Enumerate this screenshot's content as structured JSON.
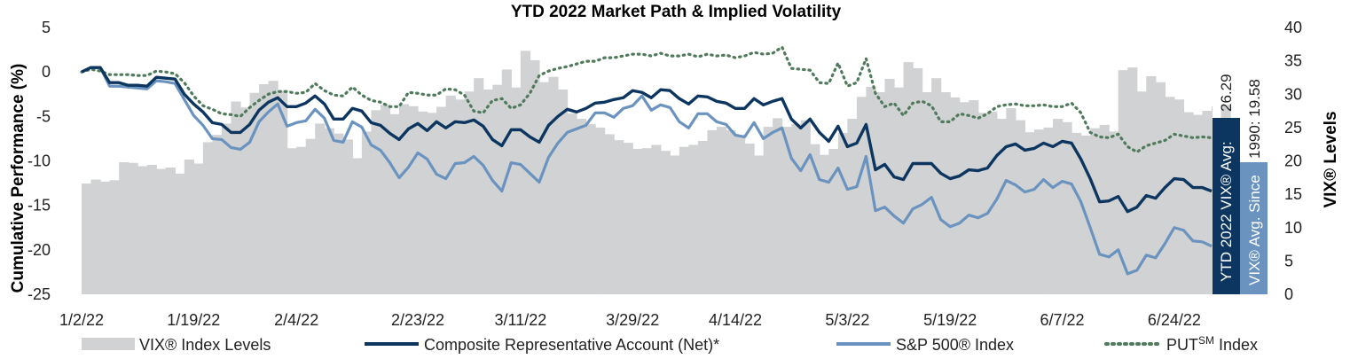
{
  "chart_data": {
    "type": "line",
    "title": "YTD 2022 Market Path & Implied Volatility",
    "ylabel_left": "Cumulative Performance (%)",
    "ylabel_right": "VIX® Levels",
    "y_left_ticks": [
      "5",
      "0",
      "-5",
      "-10",
      "-15",
      "-20",
      "-25"
    ],
    "y_right_ticks": [
      "40",
      "35",
      "30",
      "25",
      "20",
      "15",
      "10",
      "5",
      "0"
    ],
    "ylim_left": [
      -25,
      5
    ],
    "ylim_right": [
      0,
      40
    ],
    "x_tick_labels": [
      "1/2/22",
      "1/19/22",
      "2/4/22",
      "2/23/22",
      "3/11/22",
      "3/29/22",
      "4/14/22",
      "5/3/22",
      "5/19/22",
      "6/7/22",
      "6/24/22"
    ],
    "x_tick_index": [
      0,
      12,
      23,
      36,
      47,
      59,
      70,
      82,
      93,
      105,
      117
    ],
    "legend": {
      "vix": "VIX® Index Levels",
      "composite": "Composite Representative Account (Net)*",
      "sp500": "S&P 500® Index",
      "put_prefix": "PUT",
      "put_sup": "SM",
      "put_suffix": " Index"
    },
    "colors": {
      "vix": "#d0d2d3",
      "composite": "#0c3560",
      "sp500": "#6b93bf",
      "put": "#4f7a5b",
      "badge_ytd": "#0c3560",
      "badge_since": "#6b93bf"
    },
    "annotations": {
      "ytd_avg_label": "YTD 2022 VIX® Avg:",
      "ytd_avg_value": "26.29",
      "since_avg_label": "VIX® Avg. Since",
      "since_avg_value": "1990: 19.58"
    },
    "series": {
      "vix": [
        16.6,
        17.2,
        16.9,
        17.1,
        19.8,
        19.7,
        19.2,
        19.4,
        18.8,
        19.0,
        18.1,
        20.2,
        19.6,
        22.8,
        23.9,
        25.6,
        28.9,
        28.0,
        30.2,
        31.5,
        32.0,
        30.5,
        21.9,
        22.1,
        23.3,
        25.6,
        24.9,
        24.1,
        23.2,
        20.4,
        24.4,
        27.6,
        28.4,
        27.0,
        28.5,
        28.2,
        27.4,
        27.2,
        28.1,
        29.8,
        29.2,
        30.4,
        32.4,
        30.7,
        31.4,
        33.7,
        31.0,
        36.5,
        35.1,
        31.8,
        32.6,
        30.7,
        27.1,
        26.3,
        25.5,
        25.0,
        24.0,
        23.1,
        22.7,
        21.8,
        21.9,
        22.4,
        21.5,
        20.8,
        22.1,
        22.4,
        23.0,
        24.6,
        25.1,
        24.6,
        23.7,
        22.6,
        20.8,
        25.1,
        26.4,
        25.1,
        25.5,
        26.1,
        22.5,
        20.9,
        21.8,
        24.2,
        26.3,
        29.6,
        31.1,
        30.3,
        32.3,
        31.0,
        34.8,
        33.9,
        30.3,
        32.4,
        30.3,
        29.5,
        28.8,
        29.1,
        27.2,
        27.4,
        26.3,
        27.9,
        26.1,
        24.3,
        24.7,
        25.0,
        26.3,
        25.8,
        24.2,
        23.8,
        24.9,
        25.4,
        24.4,
        33.6,
        34.0,
        30.4,
        32.7,
        31.8,
        29.6,
        29.2,
        27.3,
        26.9,
        27.5,
        28.2,
        28.4
      ],
      "composite": [
        0,
        0.5,
        0.5,
        -1.2,
        -1.2,
        -1.5,
        -1.5,
        -1.6,
        -0.6,
        -0.7,
        -0.8,
        -2.5,
        -3.6,
        -4.5,
        -5.7,
        -5.9,
        -6.8,
        -6.8,
        -5.9,
        -4.3,
        -3.4,
        -2.9,
        -3.9,
        -3.9,
        -3.5,
        -2.7,
        -3.6,
        -5.3,
        -5.3,
        -4.1,
        -4.4,
        -5.7,
        -6.0,
        -6.9,
        -7.6,
        -6.4,
        -5.8,
        -6.6,
        -5.6,
        -6.3,
        -5.6,
        -5.7,
        -5.4,
        -6.1,
        -7.6,
        -8.3,
        -6.5,
        -6.5,
        -7.3,
        -7.9,
        -6.0,
        -5.0,
        -4.2,
        -4.5,
        -4.1,
        -3.5,
        -3.4,
        -3.1,
        -2.9,
        -2.1,
        -2.3,
        -2.9,
        -2.0,
        -2.1,
        -3.0,
        -3.6,
        -2.7,
        -2.8,
        -3.3,
        -3.5,
        -4.1,
        -4.1,
        -3.0,
        -3.7,
        -3.3,
        -3.0,
        -5.3,
        -6.3,
        -5.3,
        -6.8,
        -7.8,
        -6.1,
        -8.4,
        -8.0,
        -5.9,
        -11.0,
        -10.4,
        -11.8,
        -12.1,
        -10.3,
        -10.3,
        -10.3,
        -11.4,
        -12.0,
        -11.7,
        -11.0,
        -11.1,
        -10.8,
        -9.4,
        -8.4,
        -8.1,
        -8.8,
        -8.6,
        -8.0,
        -8.4,
        -7.8,
        -8.0,
        -9.8,
        -12.0,
        -14.6,
        -14.5,
        -14.0,
        -15.7,
        -15.2,
        -13.9,
        -14.2,
        -13.0,
        -12.0,
        -12.1,
        -13.0,
        -13.0,
        -13.4
      ],
      "sp500": [
        0,
        0.5,
        0.5,
        -1.6,
        -1.6,
        -1.7,
        -1.8,
        -1.9,
        -1.0,
        -1.1,
        -1.3,
        -3.1,
        -4.9,
        -6.0,
        -7.5,
        -7.6,
        -8.5,
        -8.7,
        -7.9,
        -5.6,
        -4.5,
        -3.6,
        -6.1,
        -5.7,
        -5.5,
        -4.2,
        -5.2,
        -7.7,
        -7.9,
        -5.6,
        -6.2,
        -8.2,
        -8.8,
        -10.2,
        -11.9,
        -10.7,
        -9.1,
        -9.8,
        -11.5,
        -12.0,
        -10.3,
        -10.2,
        -9.5,
        -10.5,
        -12.2,
        -13.4,
        -10.2,
        -10.4,
        -11.4,
        -12.4,
        -9.6,
        -8.0,
        -6.8,
        -6.4,
        -6.0,
        -4.6,
        -4.6,
        -5.1,
        -4.1,
        -3.8,
        -2.7,
        -4.3,
        -3.7,
        -4.0,
        -5.6,
        -6.3,
        -4.7,
        -4.7,
        -5.6,
        -5.9,
        -7.1,
        -7.3,
        -5.7,
        -7.5,
        -6.8,
        -6.3,
        -9.7,
        -11.1,
        -9.3,
        -12.1,
        -12.4,
        -10.8,
        -13.2,
        -12.9,
        -9.5,
        -15.6,
        -15.2,
        -16.2,
        -17.0,
        -15.4,
        -14.9,
        -14.1,
        -16.6,
        -17.4,
        -17.0,
        -16.1,
        -16.4,
        -15.9,
        -14.3,
        -12.2,
        -12.7,
        -13.5,
        -13.2,
        -12.1,
        -13.0,
        -12.3,
        -12.6,
        -14.6,
        -17.5,
        -20.5,
        -20.8,
        -20.0,
        -22.7,
        -22.3,
        -20.6,
        -20.9,
        -19.3,
        -17.5,
        -17.8,
        -19.0,
        -19.1,
        -19.6
      ],
      "put": [
        0,
        0.3,
        0.1,
        -0.3,
        -0.3,
        -0.3,
        -0.4,
        -0.4,
        0.1,
        0.0,
        -0.2,
        -1.2,
        -2.7,
        -3.8,
        -4.2,
        -4.7,
        -4.8,
        -5.0,
        -4.0,
        -3.2,
        -2.5,
        -2.2,
        -2.2,
        -2.4,
        -2.3,
        -1.3,
        -2.1,
        -2.6,
        -2.7,
        -1.7,
        -2.6,
        -3.2,
        -3.4,
        -3.9,
        -3.9,
        -2.3,
        -2.4,
        -2.6,
        -2.6,
        -1.9,
        -2.0,
        -2.6,
        -4.4,
        -4.6,
        -3.2,
        -3.0,
        -4.1,
        -3.7,
        -2.4,
        -0.4,
        0.1,
        0.4,
        0.6,
        0.9,
        1.2,
        1.2,
        1.6,
        1.6,
        1.8,
        2.0,
        2.0,
        1.8,
        2.1,
        1.8,
        1.8,
        2.0,
        1.7,
        2.0,
        1.8,
        1.9,
        1.6,
        1.8,
        2.2,
        2.0,
        2.1,
        2.8,
        0.4,
        0.3,
        0.2,
        -1.2,
        -1.3,
        1.0,
        -1.6,
        -1.2,
        1.5,
        -2.4,
        -3.9,
        -3.5,
        -4.9,
        -3.5,
        -3.3,
        -3.8,
        -5.6,
        -5.6,
        -4.7,
        -4.9,
        -5.2,
        -4.7,
        -3.9,
        -3.7,
        -3.6,
        -3.8,
        -3.8,
        -3.7,
        -3.9,
        -3.9,
        -3.5,
        -4.6,
        -6.8,
        -7.3,
        -7.4,
        -7.0,
        -8.4,
        -9.0,
        -8.3,
        -8.0,
        -7.7,
        -7.0,
        -7.2,
        -7.4,
        -7.3,
        -7.4
      ]
    }
  }
}
